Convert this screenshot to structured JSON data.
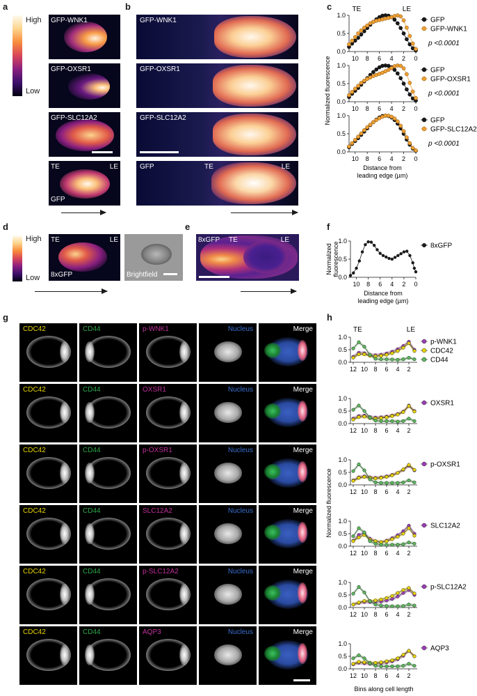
{
  "panels": {
    "a": "a",
    "b": "b",
    "c": "c",
    "d": "d",
    "e": "e",
    "f": "f",
    "g": "g",
    "h": "h"
  },
  "colorbar": {
    "high": "High",
    "low": "Low"
  },
  "panel_a": {
    "images": [
      "GFP-WNK1",
      "GFP-OXSR1",
      "GFP-SLC12A2",
      "TE",
      "LE",
      "GFP"
    ]
  },
  "panel_b": {
    "images": [
      "GFP-WNK1",
      "GFP-OXSR1",
      "GFP-SLC12A2",
      "GFP",
      "TE",
      "LE"
    ]
  },
  "panel_d": {
    "te": "TE",
    "le": "LE",
    "label": "8xGFP",
    "brightfield": "Brightfield"
  },
  "panel_e": {
    "label": "8xGFP",
    "te": "TE",
    "le": "LE"
  },
  "panel_g": {
    "columns": [
      "CDC42",
      "CD44",
      "Nucleus",
      "Merge"
    ],
    "rows": [
      "p-WNK1",
      "OXSR1",
      "p-OXSR1",
      "SLC12A2",
      "p-SLC12A2",
      "AQP3"
    ],
    "colors": {
      "CDC42": "#e8d400",
      "CD44": "#2ea84a",
      "protein": "#c0309a",
      "Nucleus": "#3a6fd0",
      "Merge": "#ffffff"
    }
  },
  "chart_data": [
    {
      "panel": "c",
      "type": "line",
      "title": "",
      "xlabel": "Distance from leading edge (µm)",
      "ylabel": "Normalized fluorescence",
      "annotations": [
        "TE",
        "LE"
      ],
      "subplots": [
        {
          "series": [
            {
              "name": "GFP",
              "color": "#1a1a1a",
              "x": [
                11,
                10.5,
                10,
                9.5,
                9,
                8.5,
                8,
                7.5,
                7,
                6.5,
                6,
                5.5,
                5,
                4.5,
                4,
                3.5,
                3,
                2.5,
                2,
                1.5,
                1,
                0.5,
                0
              ],
              "y": [
                0.13,
                0.22,
                0.3,
                0.38,
                0.47,
                0.56,
                0.65,
                0.74,
                0.82,
                0.89,
                0.95,
                0.99,
                1.0,
                0.99,
                0.95,
                0.88,
                0.78,
                0.65,
                0.5,
                0.34,
                0.2,
                0.09,
                0.03
              ]
            },
            {
              "name": "GFP-WNK1",
              "color": "#f0a030",
              "x": [
                11,
                10.5,
                10,
                9.5,
                9,
                8.5,
                8,
                7.5,
                7,
                6.5,
                6,
                5.5,
                5,
                4.5,
                4,
                3.5,
                3,
                2.5,
                2,
                1.5,
                1,
                0.5,
                0
              ],
              "y": [
                0.2,
                0.3,
                0.4,
                0.5,
                0.58,
                0.66,
                0.72,
                0.78,
                0.82,
                0.85,
                0.87,
                0.89,
                0.91,
                0.93,
                0.95,
                0.98,
                1.0,
                0.97,
                0.86,
                0.66,
                0.43,
                0.22,
                0.07
              ]
            }
          ],
          "p": "p <0.0001"
        },
        {
          "series": [
            {
              "name": "GFP",
              "color": "#1a1a1a",
              "x": [
                11,
                10.5,
                10,
                9.5,
                9,
                8.5,
                8,
                7.5,
                7,
                6.5,
                6,
                5.5,
                5,
                4.5,
                4,
                3.5,
                3,
                2.5,
                2,
                1.5,
                1,
                0.5,
                0
              ],
              "y": [
                0.13,
                0.22,
                0.3,
                0.38,
                0.47,
                0.56,
                0.65,
                0.74,
                0.82,
                0.89,
                0.95,
                0.99,
                1.0,
                0.99,
                0.95,
                0.88,
                0.78,
                0.65,
                0.5,
                0.34,
                0.2,
                0.09,
                0.03
              ]
            },
            {
              "name": "GFP-OXSR1",
              "color": "#f0a030",
              "x": [
                11,
                10.5,
                10,
                9.5,
                9,
                8.5,
                8,
                7.5,
                7,
                6.5,
                6,
                5.5,
                5,
                4.5,
                4,
                3.5,
                3,
                2.5,
                2,
                1.5,
                1,
                0.5,
                0
              ],
              "y": [
                0.18,
                0.27,
                0.36,
                0.44,
                0.52,
                0.58,
                0.63,
                0.67,
                0.71,
                0.74,
                0.77,
                0.8,
                0.84,
                0.88,
                0.93,
                0.98,
                1.0,
                0.99,
                0.92,
                0.76,
                0.52,
                0.28,
                0.1
              ]
            }
          ],
          "p": "p <0.0001"
        },
        {
          "series": [
            {
              "name": "GFP",
              "color": "#1a1a1a",
              "x": [
                11,
                10.5,
                10,
                9.5,
                9,
                8.5,
                8,
                7.5,
                7,
                6.5,
                6,
                5.5,
                5,
                4.5,
                4,
                3.5,
                3,
                2.5,
                2,
                1.5,
                1,
                0.5,
                0
              ],
              "y": [
                0.13,
                0.22,
                0.3,
                0.38,
                0.47,
                0.56,
                0.65,
                0.74,
                0.82,
                0.89,
                0.95,
                0.99,
                1.0,
                0.99,
                0.95,
                0.88,
                0.78,
                0.65,
                0.5,
                0.34,
                0.2,
                0.09,
                0.03
              ]
            },
            {
              "name": "GFP-SLC12A2",
              "color": "#f0a030",
              "x": [
                11,
                10.5,
                10,
                9.5,
                9,
                8.5,
                8,
                7.5,
                7,
                6.5,
                6,
                5.5,
                5,
                4.5,
                4,
                3.5,
                3,
                2.5,
                2,
                1.5,
                1,
                0.5,
                0
              ],
              "y": [
                0.15,
                0.24,
                0.33,
                0.42,
                0.51,
                0.6,
                0.68,
                0.75,
                0.82,
                0.88,
                0.93,
                0.97,
                1.0,
                1.0,
                0.97,
                0.92,
                0.84,
                0.72,
                0.57,
                0.4,
                0.24,
                0.11,
                0.04
              ]
            }
          ],
          "p": "p <0.0001"
        }
      ],
      "xlim": [
        11,
        0
      ],
      "ylim": [
        0,
        1.0
      ],
      "xticks": [
        "10",
        "8",
        "6",
        "4",
        "2",
        "0"
      ],
      "yticks": [
        "0.0",
        "0.5",
        "1.0"
      ]
    },
    {
      "panel": "f",
      "type": "line",
      "title": "",
      "xlabel": "Distance from leading edge (µm)",
      "ylabel": "Normalized fluorescence",
      "series": [
        {
          "name": "8xGFP",
          "color": "#1a1a1a",
          "x": [
            11,
            10.5,
            10,
            9.5,
            9,
            8.5,
            8,
            7.5,
            7,
            6.5,
            6,
            5.5,
            5,
            4.5,
            4,
            3.5,
            3,
            2.5,
            2,
            1.5,
            1,
            0.5,
            0.25,
            0
          ],
          "y": [
            0.05,
            0.12,
            0.25,
            0.45,
            0.7,
            0.9,
            0.98,
            0.97,
            0.88,
            0.76,
            0.66,
            0.6,
            0.56,
            0.52,
            0.5,
            0.55,
            0.6,
            0.65,
            0.7,
            0.72,
            0.6,
            0.4,
            0.25,
            0.15
          ]
        }
      ],
      "xlim": [
        11,
        0
      ],
      "ylim": [
        0,
        1.0
      ],
      "xticks": [
        "10",
        "8",
        "6",
        "4",
        "2",
        "0"
      ],
      "yticks": [
        "0.0",
        "0.5",
        "1.0"
      ]
    },
    {
      "panel": "h",
      "type": "line",
      "xlabel": "Bins along cell length",
      "ylabel": "Normalized fluorescence",
      "annotations": [
        "TE",
        "LE"
      ],
      "x": [
        12,
        11,
        10,
        9,
        8,
        7,
        6,
        5,
        4,
        3,
        2,
        1
      ],
      "xticks": [
        "12",
        "10",
        "8",
        "6",
        "4",
        "2"
      ],
      "yticks": [
        "0.0",
        "0.5",
        "1.0"
      ],
      "ylim": [
        0,
        1.0
      ],
      "subplots": [
        {
          "series": [
            {
              "name": "p-WNK1",
              "color": "#9c3db8",
              "values": [
                0.22,
                0.38,
                0.36,
                0.3,
                0.28,
                0.3,
                0.35,
                0.42,
                0.52,
                0.65,
                0.82,
                0.5
              ]
            },
            {
              "name": "CDC42",
              "color": "#e8d400",
              "values": [
                0.18,
                0.32,
                0.32,
                0.26,
                0.24,
                0.26,
                0.3,
                0.36,
                0.45,
                0.58,
                0.76,
                0.45
              ]
            },
            {
              "name": "CD44",
              "color": "#5cb85c",
              "values": [
                0.55,
                0.8,
                0.62,
                0.3,
                0.14,
                0.12,
                0.12,
                0.11,
                0.1,
                0.12,
                0.18,
                0.12
              ]
            }
          ]
        },
        {
          "series": [
            {
              "name": "OXSR1",
              "color": "#9c3db8",
              "values": [
                0.2,
                0.3,
                0.32,
                0.26,
                0.24,
                0.25,
                0.28,
                0.32,
                0.38,
                0.48,
                0.72,
                0.5
              ]
            },
            {
              "name": "CDC42",
              "color": "#e8d400",
              "values": [
                0.16,
                0.26,
                0.28,
                0.22,
                0.2,
                0.22,
                0.25,
                0.3,
                0.36,
                0.46,
                0.7,
                0.48
              ]
            },
            {
              "name": "CD44",
              "color": "#5cb85c",
              "values": [
                0.55,
                0.72,
                0.5,
                0.24,
                0.12,
                0.1,
                0.1,
                0.1,
                0.08,
                0.1,
                0.2,
                0.1
              ]
            }
          ]
        },
        {
          "series": [
            {
              "name": "p-OXSR1",
              "color": "#9c3db8",
              "values": [
                0.18,
                0.3,
                0.34,
                0.3,
                0.28,
                0.3,
                0.34,
                0.4,
                0.48,
                0.6,
                0.76,
                0.58
              ]
            },
            {
              "name": "CDC42",
              "color": "#e8d400",
              "values": [
                0.16,
                0.28,
                0.32,
                0.28,
                0.26,
                0.28,
                0.32,
                0.38,
                0.48,
                0.62,
                0.8,
                0.6
              ]
            },
            {
              "name": "CD44",
              "color": "#5cb85c",
              "values": [
                0.55,
                0.82,
                0.58,
                0.22,
                0.1,
                0.08,
                0.08,
                0.08,
                0.08,
                0.1,
                0.18,
                0.1
              ]
            }
          ]
        },
        {
          "series": [
            {
              "name": "SLC12A2",
              "color": "#9c3db8",
              "values": [
                0.22,
                0.45,
                0.52,
                0.3,
                0.2,
                0.16,
                0.22,
                0.32,
                0.44,
                0.6,
                0.82,
                0.5
              ]
            },
            {
              "name": "CDC42",
              "color": "#e8d400",
              "values": [
                0.2,
                0.35,
                0.45,
                0.26,
                0.2,
                0.16,
                0.2,
                0.28,
                0.38,
                0.5,
                0.72,
                0.42
              ]
            },
            {
              "name": "CD44",
              "color": "#5cb85c",
              "values": [
                0.4,
                0.72,
                0.55,
                0.2,
                0.1,
                0.06,
                0.05,
                0.06,
                0.06,
                0.08,
                0.15,
                0.1
              ]
            }
          ]
        },
        {
          "series": [
            {
              "name": "p-SLC12A2",
              "color": "#9c3db8",
              "values": [
                0.12,
                0.18,
                0.22,
                0.22,
                0.22,
                0.24,
                0.28,
                0.34,
                0.44,
                0.58,
                0.7,
                0.5
              ]
            },
            {
              "name": "CDC42",
              "color": "#e8d400",
              "values": [
                0.12,
                0.2,
                0.26,
                0.26,
                0.28,
                0.32,
                0.38,
                0.46,
                0.58,
                0.7,
                0.78,
                0.56
              ]
            },
            {
              "name": "CD44",
              "color": "#5cb85c",
              "values": [
                0.55,
                0.82,
                0.6,
                0.25,
                0.12,
                0.08,
                0.06,
                0.05,
                0.05,
                0.06,
                0.12,
                0.08
              ]
            }
          ]
        },
        {
          "series": [
            {
              "name": "AQP3",
              "color": "#9c3db8",
              "values": [
                0.18,
                0.24,
                0.22,
                0.2,
                0.2,
                0.22,
                0.26,
                0.3,
                0.38,
                0.52,
                0.72,
                0.5
              ]
            },
            {
              "name": "CDC42",
              "color": "#e8d400",
              "values": [
                0.2,
                0.28,
                0.26,
                0.24,
                0.24,
                0.26,
                0.3,
                0.34,
                0.42,
                0.56,
                0.72,
                0.5
              ]
            },
            {
              "name": "CD44",
              "color": "#5cb85c",
              "values": [
                0.42,
                0.54,
                0.42,
                0.22,
                0.12,
                0.1,
                0.1,
                0.1,
                0.1,
                0.12,
                0.2,
                0.12
              ]
            }
          ]
        }
      ]
    }
  ]
}
